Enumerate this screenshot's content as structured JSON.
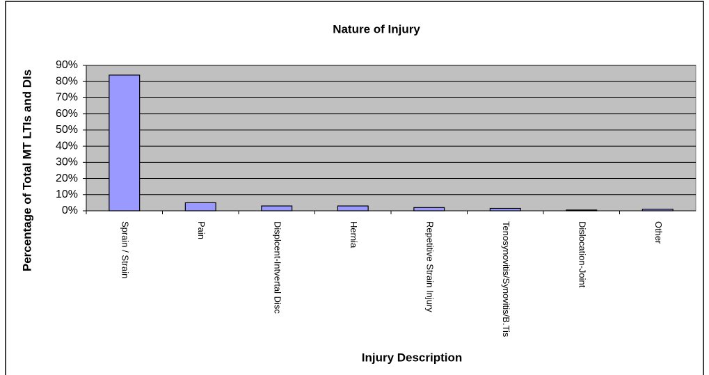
{
  "chart_data": {
    "type": "bar",
    "title": "Nature of Injury",
    "x_label": "Injury Description",
    "y_label": "Percentage of Total MT LTIs and DIs",
    "categories": [
      "Sprain / Strain",
      "Pain",
      "Displcent-Intvertal Disc",
      "Hernia",
      "Repetitive Strain Injury",
      "Tenosynovitis/Synovitis/B.Tis",
      "Dislocation-Joint",
      "Other"
    ],
    "values": [
      84,
      5,
      3,
      3,
      2,
      1.5,
      0.5,
      1
    ],
    "color": "#9999ff",
    "ylim": [
      0,
      90
    ],
    "yticks": [
      {
        "value": 0,
        "label": "0%"
      },
      {
        "value": 10,
        "label": "10%"
      },
      {
        "value": 20,
        "label": "20%"
      },
      {
        "value": 30,
        "label": "30%"
      },
      {
        "value": 40,
        "label": "40%"
      },
      {
        "value": 50,
        "label": "50%"
      },
      {
        "value": 60,
        "label": "60%"
      },
      {
        "value": 70,
        "label": "70%"
      },
      {
        "value": 80,
        "label": "80%"
      },
      {
        "value": 90,
        "label": "90%"
      }
    ],
    "grid": true
  }
}
